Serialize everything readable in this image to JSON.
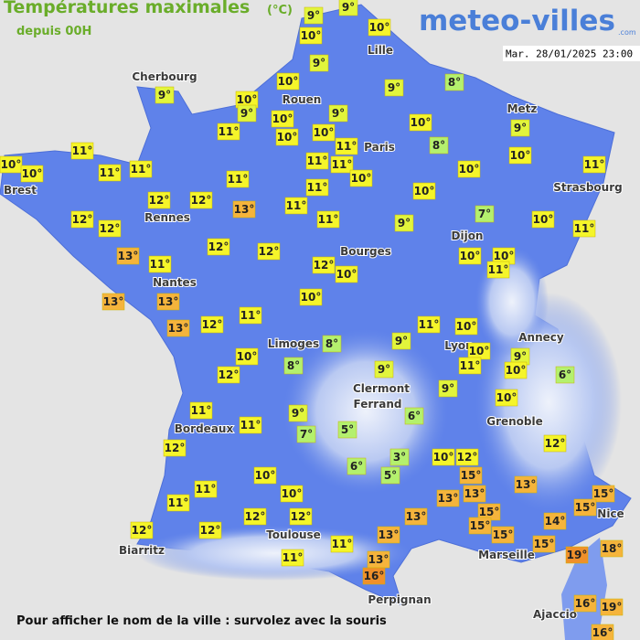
{
  "header": {
    "title": "Températures maximales",
    "unit": "(°C)",
    "subtitle": "depuis 00H",
    "logo": "meteo-villes",
    "logo_suffix": ".com",
    "date": "Mar. 28/01/2025 23:00"
  },
  "footer": "Pour afficher le nom de la ville : survolez avec la souris",
  "cities": [
    "Cherbourg",
    "Lille",
    "Rouen",
    "Paris",
    "Metz",
    "Brest",
    "Strasbourg",
    "Rennes",
    "Dijon",
    "Bourges",
    "Nantes",
    "Annecy",
    "Lyon",
    "Limoges",
    "Clermont",
    "Ferrand",
    "Grenoble",
    "Bordeaux",
    "Nice",
    "Toulouse",
    "Marseille",
    "Biarritz",
    "Perpignan",
    "Ajaccio"
  ],
  "temperatures": [
    "9°",
    "9°",
    "10°",
    "10°",
    "9°",
    "10°",
    "9°",
    "8°",
    "9°",
    "10°",
    "9°",
    "10°",
    "9°",
    "10°",
    "9°",
    "11°",
    "10°",
    "10°",
    "11°",
    "8°",
    "10°",
    "11°",
    "10°",
    "10°",
    "11°",
    "11°",
    "11°",
    "11°",
    "10°",
    "10°",
    "11°",
    "11°",
    "11°",
    "10°",
    "12°",
    "12°",
    "13°",
    "11°",
    "11°",
    "9°",
    "7°",
    "10°",
    "11°",
    "12°",
    "12°",
    "12°",
    "12°",
    "13°",
    "11°",
    "12°",
    "10°",
    "10°",
    "10°",
    "11°",
    "13°",
    "13°",
    "10°",
    "13°",
    "12°",
    "11°",
    "11°",
    "10°",
    "8°",
    "9°",
    "10°",
    "9°",
    "10°",
    "8°",
    "12°",
    "9°",
    "11°",
    "10°",
    "6°",
    "9°",
    "11°",
    "9°",
    "6°",
    "10°",
    "11°",
    "7°",
    "5°",
    "12°",
    "3°",
    "10°",
    "12°",
    "12°",
    "6°",
    "5°",
    "15°",
    "13°",
    "10°",
    "11°",
    "10°",
    "13°",
    "13°",
    "15°",
    "11°",
    "12°",
    "12°",
    "13°",
    "15°",
    "15°",
    "15°",
    "14°",
    "12°",
    "12°",
    "13°",
    "15°",
    "11°",
    "15°",
    "19°",
    "18°",
    "13°",
    "11°",
    "16°",
    "16°",
    "19°",
    "16°"
  ]
}
